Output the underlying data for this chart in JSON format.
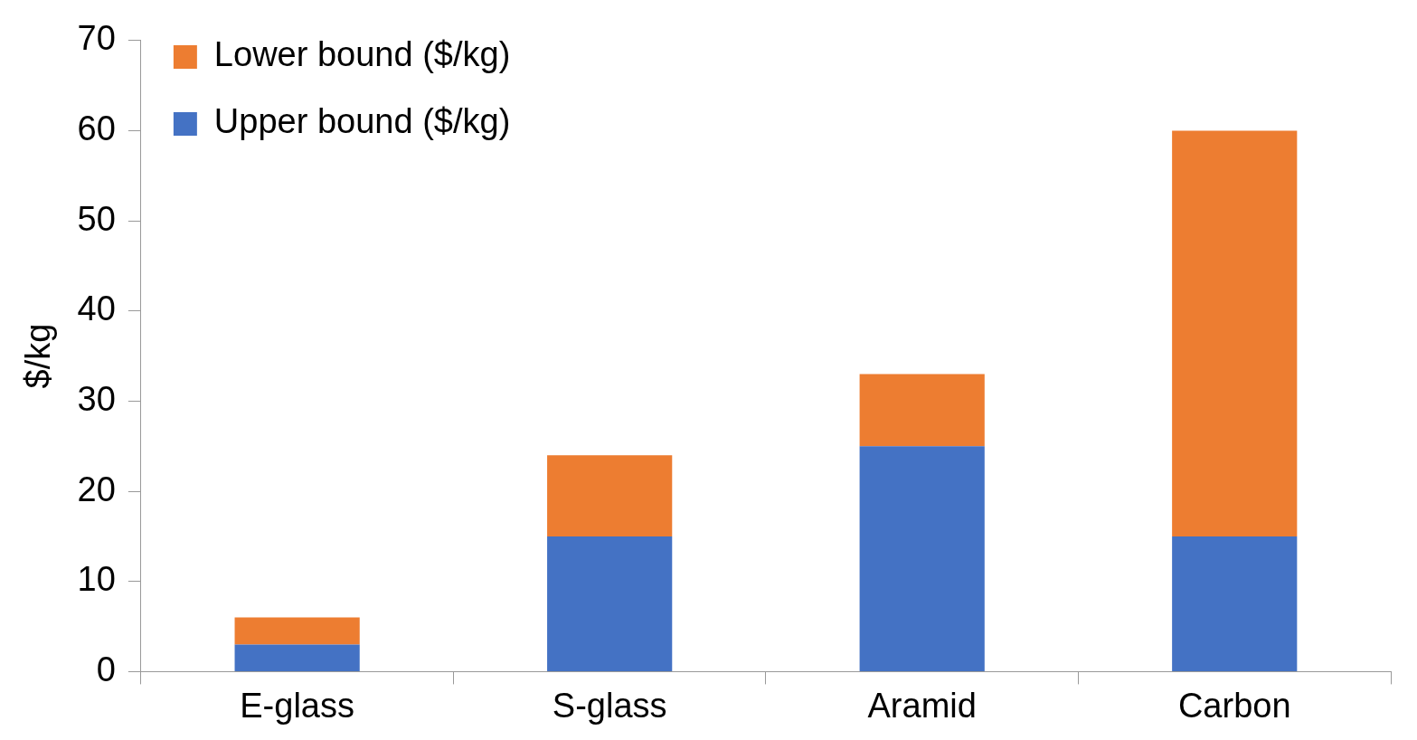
{
  "chart_data": {
    "type": "bar",
    "ylabel": "$/kg",
    "categories": [
      "E-glass",
      "S-glass",
      "Aramid",
      "Carbon"
    ],
    "stacked": true,
    "series": [
      {
        "name": "Upper bound ($/kg)",
        "color": "#4472c4",
        "values": [
          3,
          15,
          25,
          15
        ]
      },
      {
        "name": "Lower bound ($/kg)",
        "color": "#ed7d31",
        "values": [
          3,
          9,
          8,
          45
        ]
      }
    ],
    "ylim": [
      0,
      70
    ],
    "yticks": [
      0,
      10,
      20,
      30,
      40,
      50,
      60,
      70
    ],
    "grid": false,
    "legend": "top left"
  }
}
